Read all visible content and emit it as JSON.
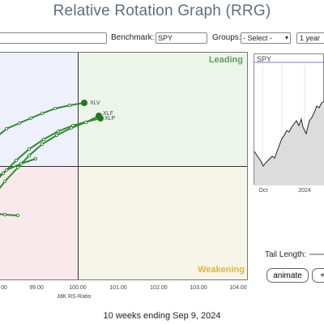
{
  "page": {
    "title": "Relative Rotation Graph (RRG)",
    "footer": "10 weeks ending Sep 9, 2024"
  },
  "toolbar": {
    "symbols_value": "",
    "benchmark_label": "Benchmark:",
    "benchmark_value": "SPY",
    "groups_label": "Groups:",
    "groups_value": "- Select -",
    "period_value": "1 year"
  },
  "rrg": {
    "quadrant_leading": "Leading",
    "quadrant_weakening": "Weakening",
    "x_axis_label": "JdK RS-Ratio",
    "x_ticks": [
      "00",
      "99.00",
      "100.00",
      "101.00",
      "102.00",
      "103.00",
      "104.00"
    ],
    "series_labels": [
      "XLV",
      "XLF",
      "XLP"
    ],
    "tail_color": "#1f7a1f"
  },
  "price_chart": {
    "symbol": "SPY",
    "x_ticks": [
      "Oct",
      "2024"
    ]
  },
  "controls": {
    "tail_length_label": "Tail Length:",
    "animate_label": "animate",
    "more_label": "+"
  },
  "icons": {
    "dropdown": "chevron-down-icon"
  }
}
